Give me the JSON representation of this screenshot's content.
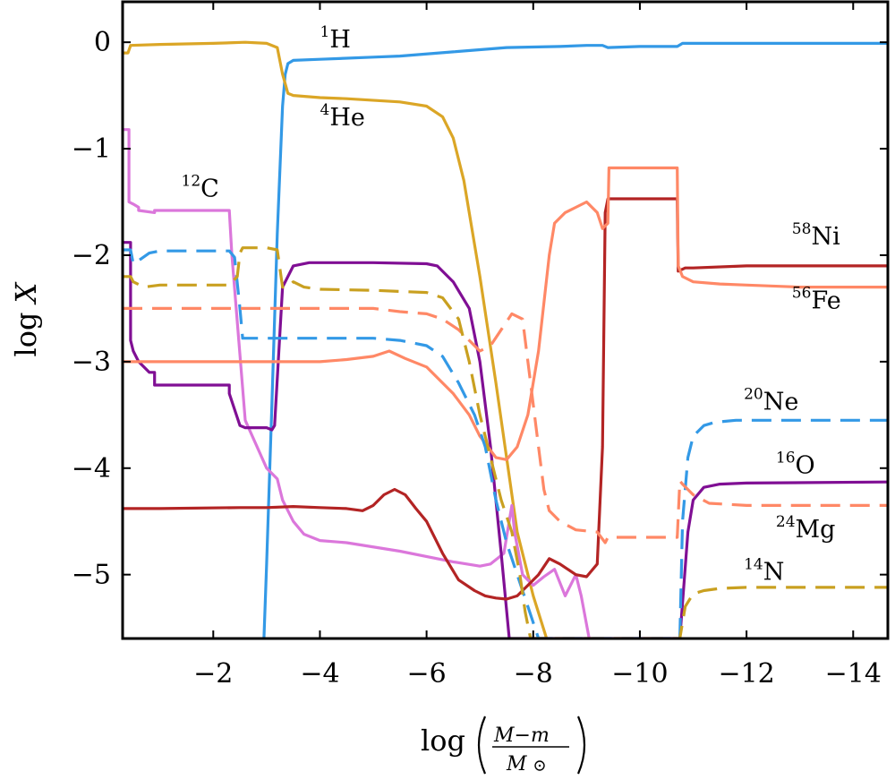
{
  "chart_data": {
    "type": "line",
    "xlabel": "log (M−m / M☉)",
    "ylabel": "log X",
    "xlim": [
      -0.3,
      -14.65
    ],
    "ylim": [
      -5.6,
      0.38
    ],
    "x_ticks": [
      -2,
      -4,
      -6,
      -8,
      -10,
      -12,
      -14
    ],
    "y_ticks": [
      0,
      -1,
      -2,
      -3,
      -4,
      -5
    ],
    "x_tick_labels": [
      "−2",
      "−4",
      "−6",
      "−8",
      "−10",
      "−12",
      "−14"
    ],
    "y_tick_labels": [
      "0",
      "−1",
      "−2",
      "−3",
      "−4",
      "−5"
    ],
    "grid": false,
    "series": [
      {
        "name": "1H",
        "mass": "1",
        "element": "H",
        "color": "#3399e6",
        "dash": "solid",
        "x": [
          -2.95,
          -3.0,
          -3.1,
          -3.2,
          -3.3,
          -3.35,
          -3.4,
          -3.5,
          -4.0,
          -5.0,
          -5.5,
          -6.5,
          -7.5,
          -8.5,
          -9.0,
          -9.3,
          -9.4,
          -10.0,
          -10.7,
          -10.8,
          -12.0,
          -14.65
        ],
        "y": [
          -5.6,
          -4.9,
          -3.4,
          -1.8,
          -0.6,
          -0.3,
          -0.2,
          -0.17,
          -0.16,
          -0.14,
          -0.13,
          -0.09,
          -0.05,
          -0.04,
          -0.03,
          -0.03,
          -0.05,
          -0.04,
          -0.04,
          -0.01,
          -0.01,
          -0.01
        ]
      },
      {
        "name": "4He",
        "mass": "4",
        "element": "He",
        "color": "#dba626",
        "dash": "solid",
        "x": [
          -0.3,
          -0.4,
          -0.45,
          -1.0,
          -2.0,
          -2.6,
          -3.0,
          -3.2,
          -3.3,
          -3.4,
          -3.5,
          -4.0,
          -4.5,
          -5.5,
          -6.0,
          -6.3,
          -6.5,
          -6.7,
          -7.0,
          -7.3,
          -7.5,
          -7.7,
          -8.0,
          -8.25
        ],
        "y": [
          -0.1,
          -0.1,
          -0.03,
          -0.02,
          -0.01,
          0.0,
          -0.01,
          -0.05,
          -0.3,
          -0.48,
          -0.5,
          -0.52,
          -0.53,
          -0.56,
          -0.6,
          -0.7,
          -0.9,
          -1.3,
          -2.2,
          -3.2,
          -3.9,
          -4.6,
          -5.2,
          -5.6
        ]
      },
      {
        "name": "12C",
        "mass": "12",
        "element": "C",
        "color": "#db77db",
        "dash": "solid",
        "x": [
          -0.3,
          -0.42,
          -0.42,
          -0.5,
          -0.6,
          -0.6,
          -0.9,
          -0.9,
          -2.3,
          -2.35,
          -2.6,
          -3.0,
          -3.2,
          -3.3,
          -3.4,
          -3.5,
          -3.7,
          -4.0,
          -4.5,
          -5.5,
          -6.5,
          -7.0,
          -7.2,
          -7.45,
          -7.6,
          -7.65,
          -7.8,
          -8.0,
          -8.2,
          -8.4,
          -8.6,
          -8.8,
          -8.9,
          -9.05
        ],
        "y": [
          -0.82,
          -0.82,
          -1.5,
          -1.52,
          -1.55,
          -1.58,
          -1.6,
          -1.58,
          -1.58,
          -2.0,
          -3.55,
          -4.0,
          -4.1,
          -4.3,
          -4.4,
          -4.5,
          -4.62,
          -4.68,
          -4.7,
          -4.78,
          -4.88,
          -4.92,
          -4.9,
          -4.8,
          -4.35,
          -4.6,
          -5.0,
          -5.1,
          -5.02,
          -4.95,
          -5.2,
          -5.0,
          -5.2,
          -5.6
        ]
      },
      {
        "name": "16O",
        "mass": "16",
        "element": "O",
        "color": "#800f94",
        "dash": "solid",
        "x": [
          -0.3,
          -0.45,
          -0.45,
          -0.5,
          -0.6,
          -0.7,
          -0.8,
          -0.9,
          -0.9,
          -2.3,
          -2.3,
          -2.5,
          -2.6,
          -3.0,
          -3.1,
          -3.15,
          -3.3,
          -3.5,
          -3.8,
          -5.0,
          -6.0,
          -6.2,
          -6.5,
          -6.8,
          -7.0,
          -7.2,
          -7.4,
          -7.55,
          -10.75,
          -10.9,
          -11.0,
          -11.2,
          -11.5,
          -12.0,
          -14.65
        ],
        "y": [
          -1.88,
          -1.88,
          -2.8,
          -2.9,
          -3.0,
          -3.05,
          -3.1,
          -3.1,
          -3.22,
          -3.22,
          -3.3,
          -3.6,
          -3.62,
          -3.62,
          -3.64,
          -3.6,
          -2.3,
          -2.1,
          -2.07,
          -2.07,
          -2.08,
          -2.1,
          -2.25,
          -2.5,
          -3.0,
          -3.8,
          -4.8,
          -5.6,
          -5.6,
          -4.6,
          -4.3,
          -4.18,
          -4.15,
          -4.14,
          -4.13
        ]
      },
      {
        "name": "58Ni",
        "mass": "58",
        "element": "Ni",
        "color": "#b32424",
        "dash": "solid",
        "x": [
          -0.3,
          -1.0,
          -2.5,
          -3.0,
          -3.5,
          -4.0,
          -4.5,
          -4.8,
          -5.0,
          -5.2,
          -5.4,
          -5.6,
          -5.8,
          -6.0,
          -6.3,
          -6.6,
          -6.9,
          -7.1,
          -7.3,
          -7.5,
          -7.7,
          -7.9,
          -8.1,
          -8.3,
          -8.5,
          -8.8,
          -9.0,
          -9.2,
          -9.3,
          -9.35,
          -9.4,
          -10.7,
          -10.72,
          -10.85,
          -11.0,
          -12.0,
          -13.0,
          -14.65
        ],
        "y": [
          -4.38,
          -4.38,
          -4.37,
          -4.37,
          -4.36,
          -4.37,
          -4.38,
          -4.4,
          -4.35,
          -4.25,
          -4.2,
          -4.25,
          -4.38,
          -4.5,
          -4.8,
          -5.05,
          -5.15,
          -5.2,
          -5.22,
          -5.23,
          -5.2,
          -5.1,
          -5.0,
          -4.85,
          -4.9,
          -5.0,
          -5.02,
          -4.9,
          -3.8,
          -1.6,
          -1.47,
          -1.47,
          -2.15,
          -2.12,
          -2.12,
          -2.1,
          -2.1,
          -2.1
        ]
      },
      {
        "name": "56Fe",
        "mass": "56",
        "element": "Fe",
        "color": "#ff8866",
        "dash": "solid",
        "x": [
          -0.3,
          -1.0,
          -2.0,
          -3.0,
          -4.0,
          -4.5,
          -5.0,
          -5.3,
          -5.6,
          -6.0,
          -6.3,
          -6.5,
          -6.8,
          -7.0,
          -7.3,
          -7.5,
          -7.7,
          -7.9,
          -8.1,
          -8.3,
          -8.4,
          -8.6,
          -8.8,
          -9.0,
          -9.2,
          -9.3,
          -9.4,
          -9.42,
          -10.7,
          -10.72,
          -10.8,
          -11.0,
          -11.5,
          -12.0,
          -13.0,
          -14.65
        ],
        "y": [
          -3.0,
          -3.0,
          -3.0,
          -3.0,
          -3.0,
          -2.98,
          -2.95,
          -2.9,
          -2.97,
          -3.05,
          -3.2,
          -3.3,
          -3.5,
          -3.7,
          -3.9,
          -3.92,
          -3.8,
          -3.5,
          -2.9,
          -2.0,
          -1.7,
          -1.6,
          -1.55,
          -1.5,
          -1.6,
          -1.75,
          -1.7,
          -1.18,
          -1.18,
          -2.1,
          -2.2,
          -2.25,
          -2.27,
          -2.28,
          -2.3,
          -2.3
        ]
      },
      {
        "name": "20Ne",
        "mass": "20",
        "element": "Ne",
        "color": "#3399e6",
        "dash": "dashed",
        "x": [
          -0.3,
          -0.45,
          -0.5,
          -0.6,
          -0.8,
          -1.0,
          -2.3,
          -2.4,
          -2.5,
          -2.55,
          -2.6,
          -3.0,
          -4.0,
          -5.0,
          -5.5,
          -6.0,
          -6.3,
          -6.6,
          -6.9,
          -7.1,
          -7.3,
          -7.5,
          -7.7,
          -7.9,
          -8.1,
          -10.75,
          -10.8,
          -10.9,
          -11.0,
          -11.2,
          -11.4,
          -11.8,
          -12.5,
          -14.65
        ],
        "y": [
          -1.95,
          -1.95,
          -2.08,
          -2.05,
          -1.98,
          -1.96,
          -1.96,
          -2.02,
          -2.5,
          -2.78,
          -2.78,
          -2.78,
          -2.78,
          -2.78,
          -2.8,
          -2.85,
          -2.95,
          -3.2,
          -3.5,
          -3.8,
          -4.3,
          -4.7,
          -5.0,
          -5.3,
          -5.6,
          -5.6,
          -4.5,
          -3.9,
          -3.7,
          -3.6,
          -3.57,
          -3.55,
          -3.55,
          -3.55
        ]
      },
      {
        "name": "24Mg",
        "mass": "24",
        "element": "Mg",
        "color": "#ff8866",
        "dash": "dashed",
        "x": [
          -0.3,
          -1.0,
          -2.0,
          -3.0,
          -4.0,
          -5.0,
          -5.5,
          -6.0,
          -6.3,
          -6.6,
          -6.8,
          -7.0,
          -7.2,
          -7.4,
          -7.6,
          -7.8,
          -7.95,
          -8.1,
          -8.2,
          -8.3,
          -8.5,
          -8.8,
          -9.2,
          -9.35,
          -9.4,
          -9.6,
          -10.7,
          -10.75,
          -10.8,
          -11.0,
          -11.3,
          -12.0,
          -14.65
        ],
        "y": [
          -2.5,
          -2.5,
          -2.5,
          -2.5,
          -2.5,
          -2.5,
          -2.53,
          -2.55,
          -2.6,
          -2.7,
          -2.8,
          -2.9,
          -2.85,
          -2.7,
          -2.55,
          -2.6,
          -3.2,
          -3.8,
          -4.2,
          -4.4,
          -4.5,
          -4.58,
          -4.6,
          -4.7,
          -4.65,
          -4.65,
          -4.65,
          -4.12,
          -4.15,
          -4.25,
          -4.33,
          -4.35,
          -4.35
        ]
      },
      {
        "name": "14N",
        "mass": "14",
        "element": "N",
        "color": "#c9a020",
        "dash": "dashed",
        "x": [
          -0.3,
          -0.45,
          -0.5,
          -0.7,
          -1.0,
          -2.3,
          -2.45,
          -2.5,
          -2.55,
          -2.6,
          -3.0,
          -3.2,
          -3.3,
          -3.4,
          -3.5,
          -3.7,
          -4.0,
          -5.0,
          -6.0,
          -6.3,
          -6.6,
          -6.8,
          -7.0,
          -7.2,
          -7.4,
          -7.6,
          -7.75,
          -7.85,
          -7.95,
          -10.75,
          -10.85,
          -11.0,
          -11.2,
          -11.5,
          -12.0,
          -13.0,
          -14.65
        ],
        "y": [
          -2.2,
          -2.2,
          -2.25,
          -2.3,
          -2.28,
          -2.28,
          -2.2,
          -1.98,
          -1.93,
          -1.93,
          -1.93,
          -1.95,
          -2.3,
          -2.3,
          -2.25,
          -2.3,
          -2.32,
          -2.33,
          -2.35,
          -2.4,
          -2.6,
          -3.0,
          -3.5,
          -3.9,
          -4.3,
          -4.6,
          -5.0,
          -5.35,
          -5.6,
          -5.6,
          -5.3,
          -5.18,
          -5.15,
          -5.13,
          -5.12,
          -5.12,
          -5.12
        ]
      }
    ],
    "labels": [
      {
        "series": "1H",
        "x": -4.0,
        "y": -0.05
      },
      {
        "series": "4He",
        "x": -4.0,
        "y": -0.78
      },
      {
        "series": "12C",
        "x": -1.4,
        "y": -1.45
      },
      {
        "series": "58Ni",
        "x": -12.85,
        "y": -1.9
      },
      {
        "series": "56Fe",
        "x": -12.85,
        "y": -2.5
      },
      {
        "series": "20Ne",
        "x": -11.95,
        "y": -3.45
      },
      {
        "series": "16O",
        "x": -12.55,
        "y": -4.05
      },
      {
        "series": "24Mg",
        "x": -12.55,
        "y": -4.65
      },
      {
        "series": "14N",
        "x": -11.95,
        "y": -5.05
      }
    ]
  }
}
